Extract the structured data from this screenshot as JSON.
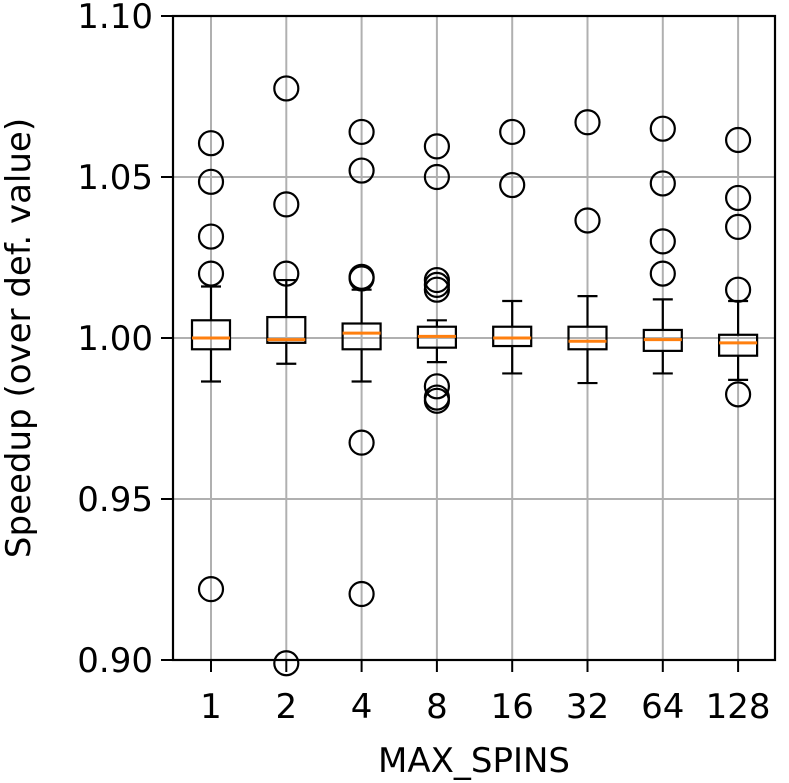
{
  "chart_data": {
    "type": "box",
    "title": "",
    "xlabel": "MAX_SPINS",
    "ylabel": "Speedup (over def. value)",
    "ylim": [
      0.9,
      1.1
    ],
    "yticks": [
      "0.90",
      "0.95",
      "1.00",
      "1.05",
      "1.10"
    ],
    "yticks_values": [
      0.9,
      0.95,
      1.0,
      1.05,
      1.1
    ],
    "grid": true,
    "categories": [
      "1",
      "2",
      "4",
      "8",
      "16",
      "32",
      "64",
      "128"
    ],
    "boxes": [
      {
        "whisker_low": 0.9865,
        "q1": 0.9965,
        "median": 1.0,
        "q3": 1.0055,
        "whisker_high": 1.016,
        "outliers": [
          1.0605,
          1.0485,
          1.0315,
          1.02,
          0.922
        ]
      },
      {
        "whisker_low": 0.992,
        "q1": 0.9985,
        "median": 0.9995,
        "q3": 1.0065,
        "whisker_high": 1.018,
        "outliers": [
          1.0775,
          1.0415,
          1.02,
          0.899
        ]
      },
      {
        "whisker_low": 0.9865,
        "q1": 0.9965,
        "median": 1.0015,
        "q3": 1.0045,
        "whisker_high": 1.015,
        "outliers": [
          1.064,
          1.052,
          1.019,
          1.0185,
          0.9675,
          0.9205
        ]
      },
      {
        "whisker_low": 0.9925,
        "q1": 0.997,
        "median": 1.0005,
        "q3": 1.0035,
        "whisker_high": 1.0055,
        "outliers": [
          1.0595,
          1.05,
          1.018,
          1.0165,
          1.015,
          0.985,
          0.9815,
          0.9805
        ]
      },
      {
        "whisker_low": 0.989,
        "q1": 0.9975,
        "median": 1.0,
        "q3": 1.0035,
        "whisker_high": 1.0115,
        "outliers": [
          1.064,
          1.0475
        ]
      },
      {
        "whisker_low": 0.986,
        "q1": 0.9965,
        "median": 0.999,
        "q3": 1.0035,
        "whisker_high": 1.013,
        "outliers": [
          1.067,
          1.0365
        ]
      },
      {
        "whisker_low": 0.989,
        "q1": 0.996,
        "median": 0.9995,
        "q3": 1.0025,
        "whisker_high": 1.012,
        "outliers": [
          1.065,
          1.048,
          1.03,
          1.02
        ]
      },
      {
        "whisker_low": 0.987,
        "q1": 0.9945,
        "median": 0.9985,
        "q3": 1.001,
        "whisker_high": 1.0115,
        "outliers": [
          1.0615,
          1.0435,
          1.0345,
          1.015,
          0.9825
        ]
      }
    ],
    "colors": {
      "box": "#000000",
      "median": "#ff7f0e",
      "grid": "#b0b0b0",
      "outlier": "#000000"
    }
  }
}
